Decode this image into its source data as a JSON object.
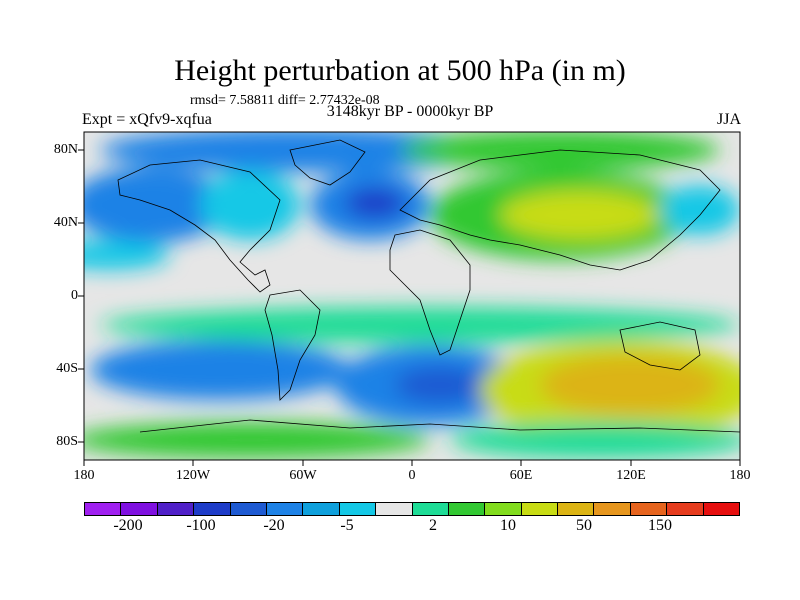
{
  "title": "Height perturbation at 500 hPa (in m)",
  "stats": "rmsd= 7.58811 diff= 2.77432e-08",
  "experiment": "Expt = xQfv9-xqfua",
  "period": "3148kyr BP - 0000kyr BP",
  "season": "JJA",
  "lat_ticks": [
    "80N",
    "40N",
    "0",
    "40S",
    "80S"
  ],
  "lon_ticks": [
    "180",
    "120W",
    "60W",
    "0",
    "60E",
    "120E",
    "180"
  ],
  "colorbar": {
    "colors": [
      "#a020f0",
      "#7f10e0",
      "#5020c8",
      "#1e3cc8",
      "#1e5ad2",
      "#1e82e6",
      "#0fa0dc",
      "#14c8e6",
      "#e6e6e6",
      "#1edc96",
      "#32c832",
      "#82dc1e",
      "#c8dc14",
      "#dcb414",
      "#e6961e",
      "#e6641e",
      "#e63c1e",
      "#e60f0f"
    ],
    "labels": [
      "-200",
      "-100",
      "-20",
      "-5",
      "2",
      "10",
      "50",
      "150"
    ]
  }
}
